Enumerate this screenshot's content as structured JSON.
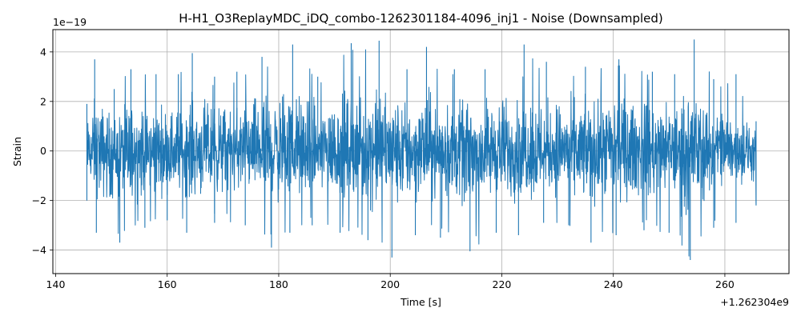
{
  "chart_data": {
    "type": "line",
    "title": "H-H1_O3ReplayMDC_iDQ_combo-1262301184-4096_inj1 - Noise (Downsampled)",
    "xlabel": "Time [s]",
    "ylabel": "Strain",
    "x_offset_label": "+1.262304e9",
    "y_exponent_label": "1e−19",
    "xlim": [
      139.5,
      271.5
    ],
    "ylim": [
      -4.95,
      4.9
    ],
    "x_ticks": [
      140,
      160,
      180,
      200,
      220,
      240,
      260
    ],
    "y_ticks": [
      -4,
      -2,
      0,
      2,
      4
    ],
    "x_tick_labels": [
      "140",
      "160",
      "180",
      "200",
      "220",
      "240",
      "260"
    ],
    "y_tick_labels": [
      "−4",
      "−2",
      "0",
      "2",
      "4"
    ],
    "grid": true,
    "series": [
      {
        "color": "#1f77b4",
        "x_range": [
          145.6,
          265.6
        ],
        "envelope_max": [
          {
            "x": 145.6,
            "y": 1.9
          },
          {
            "x": 147.0,
            "y": 3.7
          },
          {
            "x": 150.5,
            "y": 2.5
          },
          {
            "x": 153.5,
            "y": 3.3
          },
          {
            "x": 158.0,
            "y": 3.1
          },
          {
            "x": 162.0,
            "y": 3.1
          },
          {
            "x": 164.5,
            "y": 3.95
          },
          {
            "x": 168.5,
            "y": 3.0
          },
          {
            "x": 172.5,
            "y": 3.2
          },
          {
            "x": 177.0,
            "y": 3.8
          },
          {
            "x": 182.5,
            "y": 4.3
          },
          {
            "x": 187.0,
            "y": 3.0
          },
          {
            "x": 193.0,
            "y": 4.35
          },
          {
            "x": 198.0,
            "y": 4.45
          },
          {
            "x": 203.0,
            "y": 3.3
          },
          {
            "x": 206.5,
            "y": 4.2
          },
          {
            "x": 211.5,
            "y": 3.3
          },
          {
            "x": 217.0,
            "y": 3.3
          },
          {
            "x": 224.0,
            "y": 4.3
          },
          {
            "x": 228.0,
            "y": 3.6
          },
          {
            "x": 235.0,
            "y": 3.4
          },
          {
            "x": 241.0,
            "y": 3.7
          },
          {
            "x": 247.0,
            "y": 3.2
          },
          {
            "x": 251.0,
            "y": 3.1
          },
          {
            "x": 254.5,
            "y": 4.5
          },
          {
            "x": 258.0,
            "y": 2.9
          },
          {
            "x": 262.0,
            "y": 3.1
          },
          {
            "x": 265.6,
            "y": 1.2
          }
        ],
        "envelope_min": [
          {
            "x": 145.6,
            "y": -2.0
          },
          {
            "x": 147.3,
            "y": -3.3
          },
          {
            "x": 151.5,
            "y": -3.7
          },
          {
            "x": 156.0,
            "y": -3.1
          },
          {
            "x": 160.0,
            "y": -2.8
          },
          {
            "x": 163.5,
            "y": -3.3
          },
          {
            "x": 168.5,
            "y": -2.9
          },
          {
            "x": 174.0,
            "y": -3.0
          },
          {
            "x": 178.7,
            "y": -3.9
          },
          {
            "x": 182.0,
            "y": -3.3
          },
          {
            "x": 186.0,
            "y": -3.0
          },
          {
            "x": 191.0,
            "y": -3.3
          },
          {
            "x": 196.0,
            "y": -3.6
          },
          {
            "x": 200.3,
            "y": -4.3
          },
          {
            "x": 204.5,
            "y": -3.4
          },
          {
            "x": 209.0,
            "y": -3.5
          },
          {
            "x": 214.3,
            "y": -4.05
          },
          {
            "x": 219.0,
            "y": -3.3
          },
          {
            "x": 223.0,
            "y": -3.4
          },
          {
            "x": 227.5,
            "y": -2.9
          },
          {
            "x": 232.0,
            "y": -3.0
          },
          {
            "x": 236.0,
            "y": -3.7
          },
          {
            "x": 240.5,
            "y": -3.4
          },
          {
            "x": 245.5,
            "y": -3.2
          },
          {
            "x": 250.0,
            "y": -3.3
          },
          {
            "x": 253.8,
            "y": -4.4
          },
          {
            "x": 258.0,
            "y": -3.1
          },
          {
            "x": 262.0,
            "y": -2.9
          },
          {
            "x": 265.6,
            "y": -2.2
          }
        ]
      }
    ]
  }
}
